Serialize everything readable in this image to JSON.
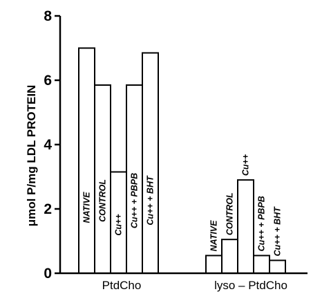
{
  "chart_data": {
    "type": "bar",
    "title": "",
    "xlabel": "",
    "ylabel": "μmol P/mg LDL PROTEIN",
    "ylim": [
      0,
      8
    ],
    "yticks": [
      "0",
      "2",
      "4",
      "6",
      "8"
    ],
    "categories": [
      "PtdCho",
      "lyso – PtdCho"
    ],
    "groups": [
      {
        "category": "PtdCho",
        "bars": [
          {
            "label": "NATIVE",
            "value": 7.0
          },
          {
            "label": "CONTROL",
            "value": 5.85
          },
          {
            "label": "Cu++",
            "value": 3.15
          },
          {
            "label": "Cu++ + PBPB",
            "value": 5.85
          },
          {
            "label": "Cu++ + BHT",
            "value": 6.85
          }
        ]
      },
      {
        "category": "lyso – PtdCho",
        "bars": [
          {
            "label": "NATIVE",
            "value": 0.55
          },
          {
            "label": "CONTROL",
            "value": 1.05
          },
          {
            "label": "Cu++",
            "value": 2.9
          },
          {
            "label": "Cu++ + PBPB",
            "value": 0.55
          },
          {
            "label": "Cu++ + BHT",
            "value": 0.4
          }
        ]
      }
    ],
    "grid": false,
    "bar_fill": "#ffffff",
    "bar_stroke": "#000000"
  }
}
